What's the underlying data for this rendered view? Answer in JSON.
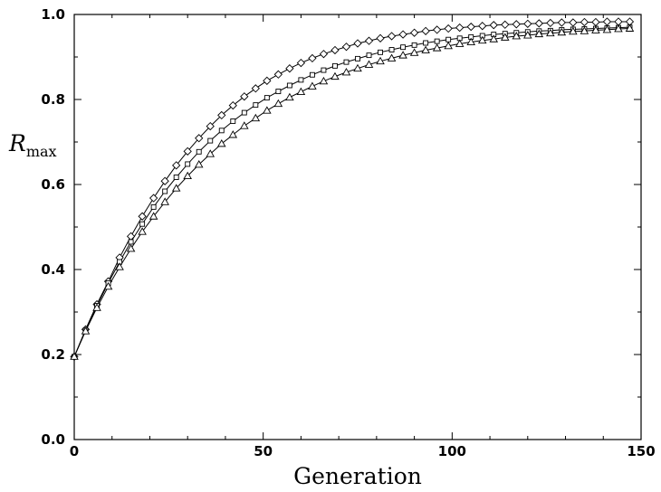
{
  "chart_data": {
    "type": "scatter",
    "title": "",
    "xlabel": "Generation",
    "ylabel": {
      "main": "R",
      "subscript": "max"
    },
    "xlim": [
      0,
      150
    ],
    "ylim": [
      0.0,
      1.0
    ],
    "x_ticks": [
      "0",
      "50",
      "100",
      "150"
    ],
    "y_ticks": [
      "0.0",
      "0.2",
      "0.4",
      "0.6",
      "0.8",
      "1.0"
    ],
    "grid": false,
    "legend": "none",
    "x": [
      0,
      3,
      6,
      9,
      12,
      15,
      18,
      21,
      24,
      27,
      30,
      33,
      36,
      39,
      42,
      45,
      48,
      51,
      54,
      57,
      60,
      63,
      66,
      69,
      72,
      75,
      78,
      81,
      84,
      87,
      90,
      93,
      96,
      99,
      102,
      105,
      108,
      111,
      114,
      117,
      120,
      123,
      126,
      129,
      132,
      135,
      138,
      141,
      144,
      147
    ],
    "series": [
      {
        "marker": "diamond",
        "values": [
          0.195,
          0.259,
          0.318,
          0.372,
          0.428,
          0.478,
          0.525,
          0.568,
          0.608,
          0.645,
          0.678,
          0.709,
          0.737,
          0.763,
          0.786,
          0.807,
          0.826,
          0.844,
          0.859,
          0.873,
          0.886,
          0.897,
          0.907,
          0.916,
          0.924,
          0.932,
          0.938,
          0.944,
          0.949,
          0.953,
          0.957,
          0.961,
          0.964,
          0.967,
          0.969,
          0.971,
          0.973,
          0.975,
          0.976,
          0.977,
          0.978,
          0.979,
          0.98,
          0.981,
          0.981,
          0.982,
          0.982,
          0.983,
          0.983,
          0.983
        ]
      },
      {
        "marker": "square",
        "values": [
          0.195,
          0.257,
          0.315,
          0.368,
          0.418,
          0.465,
          0.507,
          0.547,
          0.584,
          0.617,
          0.648,
          0.677,
          0.703,
          0.727,
          0.749,
          0.769,
          0.787,
          0.804,
          0.819,
          0.833,
          0.846,
          0.858,
          0.869,
          0.879,
          0.888,
          0.896,
          0.904,
          0.911,
          0.917,
          0.923,
          0.928,
          0.933,
          0.937,
          0.941,
          0.944,
          0.947,
          0.95,
          0.953,
          0.955,
          0.957,
          0.959,
          0.961,
          0.962,
          0.964,
          0.965,
          0.966,
          0.967,
          0.968,
          0.969,
          0.97
        ]
      },
      {
        "marker": "triangle",
        "values": [
          0.195,
          0.255,
          0.31,
          0.36,
          0.406,
          0.449,
          0.489,
          0.525,
          0.559,
          0.591,
          0.62,
          0.647,
          0.672,
          0.696,
          0.717,
          0.738,
          0.756,
          0.774,
          0.79,
          0.805,
          0.818,
          0.831,
          0.843,
          0.854,
          0.864,
          0.873,
          0.882,
          0.89,
          0.897,
          0.904,
          0.91,
          0.916,
          0.921,
          0.926,
          0.931,
          0.935,
          0.939,
          0.942,
          0.946,
          0.949,
          0.951,
          0.954,
          0.956,
          0.958,
          0.96,
          0.961,
          0.963,
          0.964,
          0.966,
          0.967
        ]
      }
    ]
  }
}
